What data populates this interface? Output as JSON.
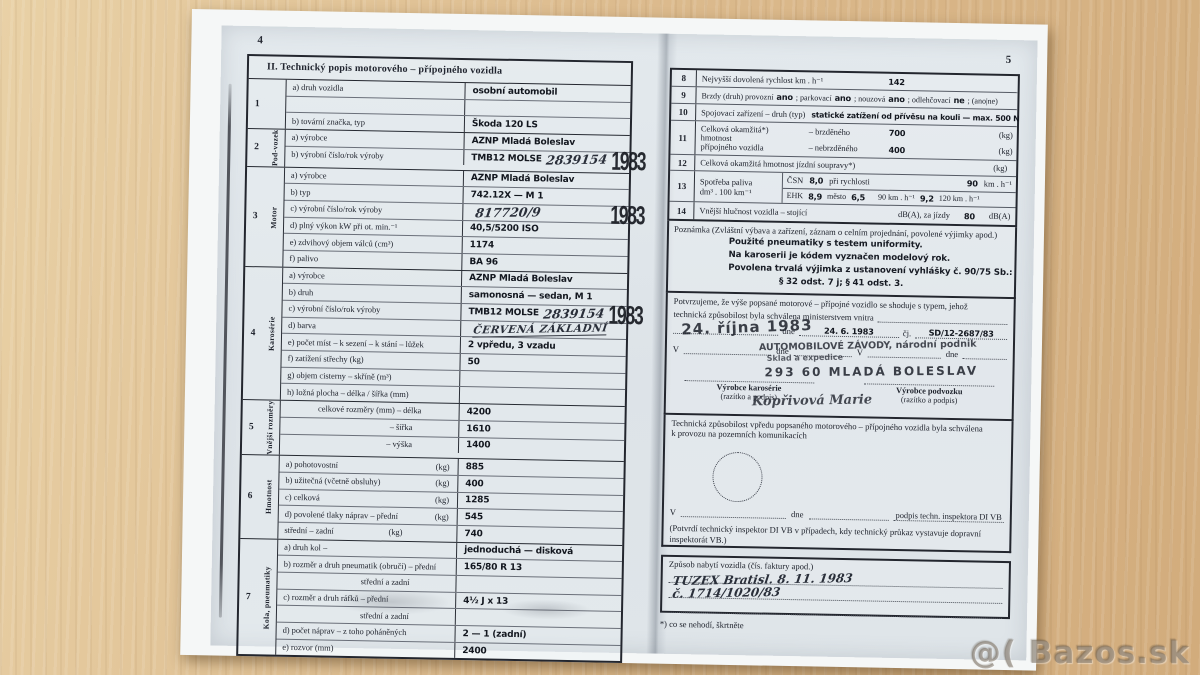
{
  "watermark": "@( Bazos.sk",
  "page_left": {
    "page_number": "4",
    "title": "II. Technický popis motorového – přípojného vozidla",
    "sections": [
      {
        "num": "1",
        "vlabel": "",
        "rows": [
          {
            "label": "a) druh vozidla",
            "value": "osobní automobil"
          },
          {
            "label": "",
            "value": ""
          },
          {
            "label": "b) tovární značka, typ",
            "value": "Škoda 120 LS"
          }
        ]
      },
      {
        "num": "2",
        "vlabel": "Pod-vozek",
        "rows": [
          {
            "label": "a) výrobce",
            "value": "AZNP Mladá Boleslav"
          },
          {
            "label": "b) výrobní číslo/rok výroby",
            "value": "TMB12 MOLSE",
            "hw": "2839154",
            "stamp": "1983"
          }
        ]
      },
      {
        "num": "3",
        "vlabel": "Motor",
        "rows": [
          {
            "label": "a) výrobce",
            "value": "AZNP Mladá Boleslav"
          },
          {
            "label": "b) typ",
            "value": "742.12X — M 1"
          },
          {
            "label": "c) výrobní číslo/rok výroby",
            "hw": "817720/9",
            "stamp": "1983"
          },
          {
            "label": "d) plný výkon kW při ot. min.⁻¹",
            "value": "40,5/5200 ISO"
          },
          {
            "label": "e) zdvihový objem válců (cm³)",
            "value": "1174"
          },
          {
            "label": "f) palivo",
            "value": "BA 96"
          }
        ]
      },
      {
        "num": "4",
        "vlabel": "Karosérie",
        "rows": [
          {
            "label": "a) výrobce",
            "value": "AZNP Mladá Boleslav"
          },
          {
            "label": "b) druh",
            "value": "samonosná — sedan, M 1"
          },
          {
            "label": "c) výrobní číslo/rok výroby",
            "value": "TMB12 MOLSE",
            "hw": "2839154",
            "stamp": "1983"
          },
          {
            "label": "d) barva",
            "hw": "ČERVENÁ ZÁKLADNÍ",
            "hw_style": "caps"
          },
          {
            "label": "e) počet míst – k sezení – k stání – lůžek",
            "value": "2 vpředu, 3 vzadu"
          },
          {
            "label": "f) zatížení střechy (kg)",
            "value": "50"
          },
          {
            "label": "g) objem cisterny – skříně (m³)",
            "value": ""
          },
          {
            "label": "h) ložná plocha – délka / šířka (mm)",
            "value": ""
          }
        ]
      },
      {
        "num": "5",
        "vlabel": "Vnější rozměry",
        "rows": [
          {
            "label": "celkové rozměry (mm) – délka",
            "value": "4200",
            "align": "center"
          },
          {
            "label": "– šířka",
            "value": "1610",
            "align": "right"
          },
          {
            "label": "– výška",
            "value": "1400",
            "align": "right"
          }
        ]
      },
      {
        "num": "6",
        "vlabel": "Hmotnost",
        "rows": [
          {
            "label": "a) pohotovostní",
            "unit": "(kg)",
            "value": "885"
          },
          {
            "label": "b) užitečná (včetně obsluhy)",
            "unit": "(kg)",
            "value": "400"
          },
          {
            "label": "c) celková",
            "unit": "(kg)",
            "value": "1285"
          },
          {
            "label": "d) povolené tlaky náprav – přední",
            "unit": "(kg)",
            "value": "545"
          },
          {
            "label": "střední – zadní",
            "unit": "(kg)",
            "value": "740",
            "align": "right"
          }
        ]
      },
      {
        "num": "7",
        "vlabel": "Kola, pneumatiky",
        "rows": [
          {
            "label": "a) druh kol –",
            "value": "jednoduchá — disková"
          },
          {
            "label": "b) rozměr a druh pneumatik (obručí) – přední",
            "value": "165/80 R 13"
          },
          {
            "label": "střední a zadní",
            "value": "",
            "align": "right"
          },
          {
            "label": "c) rozměr a druh ráfků – přední",
            "value": "4½ J x 13"
          },
          {
            "label": "střední a zadní",
            "value": "",
            "align": "right"
          },
          {
            "label": "d) počet náprav – z toho poháněných",
            "value": "2 — 1 (zadní)"
          },
          {
            "label": "e) rozvor (mm)",
            "value": "2400"
          }
        ]
      }
    ]
  },
  "page_right": {
    "page_number": "5",
    "r8": {
      "num": "8",
      "label": "Nejvyšší dovolená rychlost km . h⁻¹",
      "value": "142"
    },
    "r9": {
      "num": "9",
      "l1": "Brzdy (druh) provozní",
      "a1": "ano",
      "l2": "; parkovací",
      "a2": "ano",
      "l3": "; nouzová",
      "a3": "ano",
      "l4": "; odlehčovací",
      "a4": "ne",
      "l5": "; (ano|ne)"
    },
    "r10": {
      "num": "10",
      "label": "Spojovací zařízení – druh (typ)",
      "value": "statické zatížení od přívěsu na kouli — max. 500 N"
    },
    "r11": {
      "num": "11",
      "label1": "Celková okamžitá*)",
      "label2": "hmotnost",
      "label3": "přípojného vozidla",
      "b1": "– brzděného",
      "v1": "700",
      "u1": "(kg)",
      "b2": "– nebrzděného",
      "v2": "400",
      "u2": "(kg)"
    },
    "r12": {
      "num": "12",
      "label": "Celková okamžitá hmotnost jízdní soupravy*)",
      "unit": "(kg)"
    },
    "r13": {
      "num": "13",
      "label1": "Spotřeba paliva",
      "label2": "dm³ . 100 km⁻¹",
      "csn": "ČSN",
      "csn_v": "8,0",
      "csn_l": "při rychlosti",
      "csn_s": "90",
      "csn_u": "km . h⁻¹",
      "ehk": "EHK",
      "ehk_v": "8,9",
      "mesto": "město",
      "mesto_v": "6,5",
      "s90": "90 km . h⁻¹",
      "v90": "9,2",
      "s120": "120 km . h⁻¹"
    },
    "r14": {
      "num": "14",
      "label": "Vnější hlučnost vozidla – stojící",
      "u1": "dB(A), za jízdy",
      "value": "80",
      "u2": "dB(A)"
    },
    "note": {
      "title": "Poznámka (Zvláštní výbava a zařízení, záznam o celním projednání, povolené výjimky apod.)",
      "lines": [
        "Použité pneumatiky s testem uniformity.",
        "Na karoserii je kódem vyznačen modelový rok.",
        "Povolena trvalá výjimka z ustanovení vyhlášky č. 90/75 Sb.:",
        "§ 32 odst. 7 j; § 41 odst. 3."
      ]
    },
    "confirm": {
      "line1": "Potvrzujeme, že výše popsané motorové – přípojné vozidlo se shoduje s typem, jehož",
      "line2": "technická způsobilost byla schválena ministerstvem vnitra",
      "dne": "dne",
      "date": "24. 6. 1983",
      "cj": "čj.",
      "cj_value": "SD/12-2687/83",
      "v1": "V",
      "dne2": "dne",
      "v2": "V",
      "dne3": "dne",
      "stamp_date": "24. října 1983",
      "stamp_line1": "AUTOMOBILOVÉ ZÁVODY, národní podnik",
      "stamp_line2": "Sklad a expedice",
      "stamp_line3": "293 60 MLADÁ BOLESLAV",
      "signature": "Kopřivová Marie",
      "left_sign1": "Výrobce karosérie",
      "left_sign2": "(razítko a podpis)",
      "right_sign1": "Výrobce podvozku",
      "right_sign2": "(razítko a podpis)"
    },
    "approve": {
      "line1": "Technická způsobilost vpředu popsaného motorového – přípojného vozidla byla schválena",
      "line2": "k provozu na pozemních komunikacích",
      "v": "V",
      "dne": "dne",
      "sign_label": "podpis techn. inspektora DI VB",
      "note": "(Potvrdí technický inspektor DI VB v případech, kdy technický průkaz vystavuje dopravní inspektorát VB.)"
    },
    "acquisition": {
      "title": "Způsob nabytí vozidla (čís. faktury apod.)",
      "hw1": "TUZEX Bratisl. 8. 11. 1983",
      "hw2": "č. 1714/1020/83"
    },
    "footnote": "*) co se nehodí, škrtněte"
  }
}
